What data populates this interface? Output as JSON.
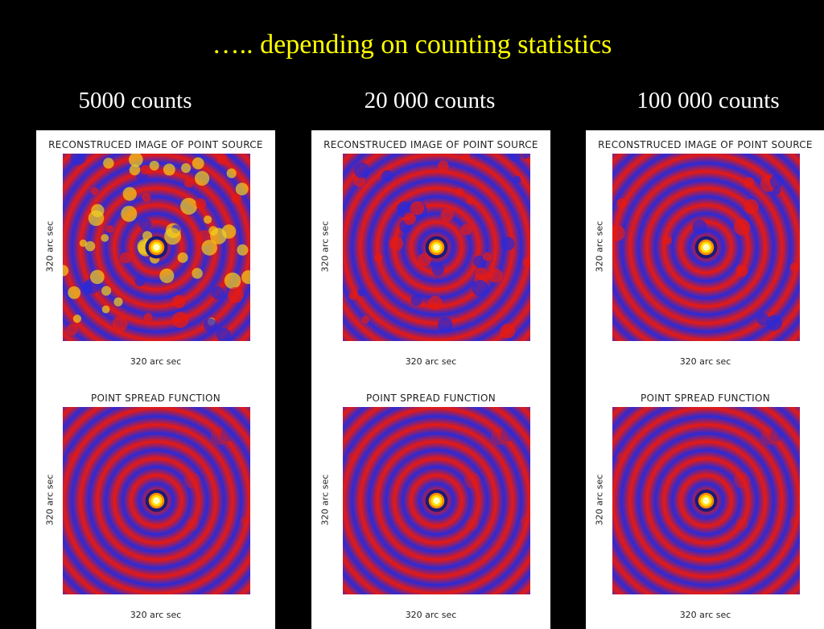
{
  "slide": {
    "title": "….. depending on counting statistics"
  },
  "columns": [
    {
      "count_label": "5000 counts",
      "top_plot": {
        "title": "RECONSTRUCED IMAGE OF POINT SOURCE",
        "xlabel": "320 arc sec",
        "ylabel": "320 arc sec"
      },
      "bottom_plot": {
        "title": "POINT SPREAD FUNCTION",
        "xlabel": "320 arc sec",
        "ylabel": "320 arc sec"
      }
    },
    {
      "count_label": "20 000 counts",
      "top_plot": {
        "title": "RECONSTRUCED IMAGE OF POINT SOURCE",
        "xlabel": "320 arc sec",
        "ylabel": "320 arc sec"
      },
      "bottom_plot": {
        "title": "POINT SPREAD FUNCTION",
        "xlabel": "320 arc sec",
        "ylabel": "320 arc sec"
      }
    },
    {
      "count_label": "100 000 counts",
      "top_plot": {
        "title": "RECONSTRUCED IMAGE OF POINT SOURCE",
        "xlabel": "320 arc sec",
        "ylabel": "320 arc sec"
      },
      "bottom_plot": {
        "title": "POINT SPREAD FUNCTION",
        "xlabel": "320 arc sec",
        "ylabel": "320 arc sec"
      }
    }
  ],
  "colors": {
    "background": "#000000",
    "title": "#ffff00",
    "ring_red": "#e8190f",
    "ring_blue": "#2a2ad8",
    "core": "#ffffc8"
  }
}
